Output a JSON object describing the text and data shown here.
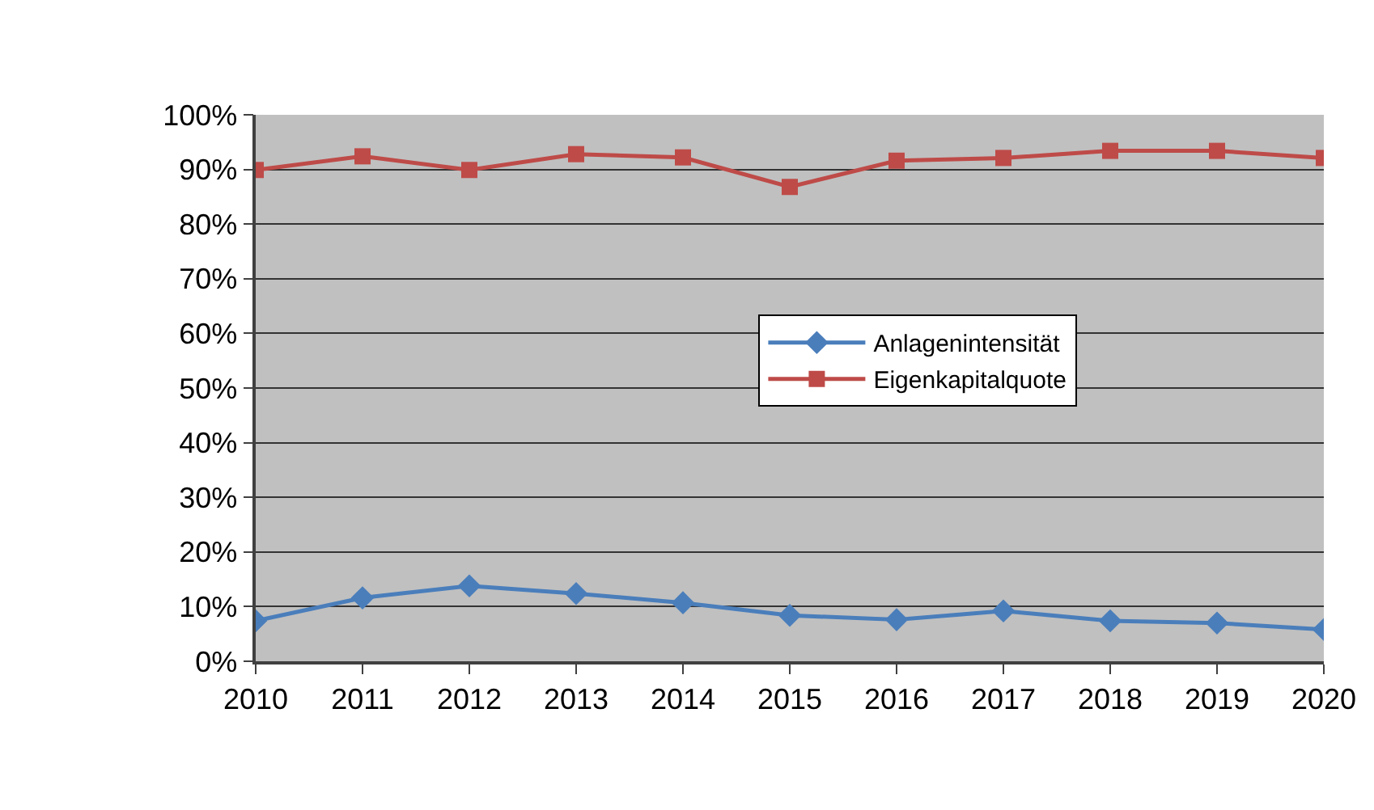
{
  "chart_data": {
    "type": "line",
    "categories": [
      "2010",
      "2011",
      "2012",
      "2013",
      "2014",
      "2015",
      "2016",
      "2017",
      "2018",
      "2019",
      "2020"
    ],
    "series": [
      {
        "name": "Anlagenintensität",
        "color": "#4a7ebb",
        "marker": "diamond",
        "values": [
          7.4,
          11.6,
          13.8,
          12.4,
          10.7,
          8.4,
          7.6,
          9.2,
          7.4,
          7.0,
          5.8
        ]
      },
      {
        "name": "Eigenkapitalquote",
        "color": "#be4b48",
        "marker": "square",
        "values": [
          89.9,
          92.4,
          89.9,
          92.8,
          92.2,
          86.8,
          91.6,
          92.1,
          93.4,
          93.4,
          92.1
        ]
      }
    ],
    "ylim": [
      0,
      100
    ],
    "yticks": [
      {
        "value": 0,
        "label": "0%"
      },
      {
        "value": 10,
        "label": "10%"
      },
      {
        "value": 20,
        "label": "20%"
      },
      {
        "value": 30,
        "label": "30%"
      },
      {
        "value": 40,
        "label": "40%"
      },
      {
        "value": 50,
        "label": "50%"
      },
      {
        "value": 60,
        "label": "60%"
      },
      {
        "value": 70,
        "label": "70%"
      },
      {
        "value": 80,
        "label": "80%"
      },
      {
        "value": 90,
        "label": "90%"
      },
      {
        "value": 100,
        "label": "100%"
      }
    ],
    "grid": "y",
    "legend": "center",
    "line_style": "solid"
  }
}
